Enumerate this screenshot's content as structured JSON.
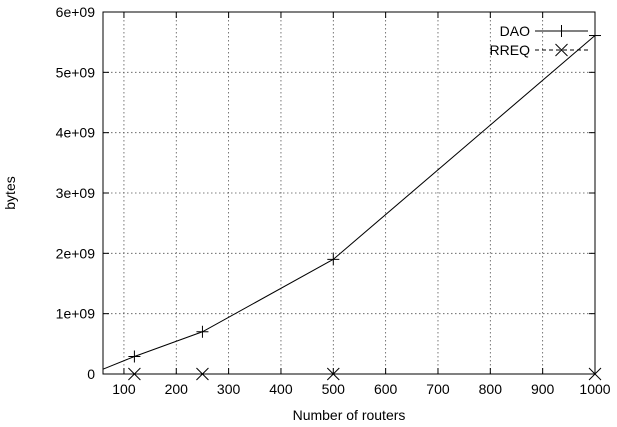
{
  "chart_data": {
    "type": "line",
    "xlabel": "Number of routers",
    "ylabel": "bytes",
    "xlim": [
      60,
      1000
    ],
    "ylim": [
      0,
      6000000000
    ],
    "x_ticks": [
      100,
      200,
      300,
      400,
      500,
      600,
      700,
      800,
      900,
      1000
    ],
    "y_ticks": [
      0,
      1000000000,
      2000000000,
      3000000000,
      4000000000,
      5000000000,
      6000000000
    ],
    "x_tick_labels": [
      "100",
      "200",
      "300",
      "400",
      "500",
      "600",
      "700",
      "800",
      "900",
      "1000"
    ],
    "y_tick_labels": [
      "0",
      "1e+09",
      "2e+09",
      "3e+09",
      "4e+09",
      "5e+09",
      "6e+09"
    ],
    "grid": true,
    "legend_position": "top-right",
    "series": [
      {
        "name": "DAO",
        "line_style": "solid",
        "marker": "plus",
        "color": "#000000",
        "x": [
          60,
          120,
          250,
          500,
          1000
        ],
        "y": [
          80000000,
          290000000,
          700000000,
          1900000000,
          5610000000
        ]
      },
      {
        "name": "RREQ",
        "line_style": "dashed",
        "marker": "cross",
        "color": "#000000",
        "x": [
          120,
          250,
          500,
          1000
        ],
        "y": [
          0,
          0,
          0,
          0
        ]
      }
    ]
  }
}
